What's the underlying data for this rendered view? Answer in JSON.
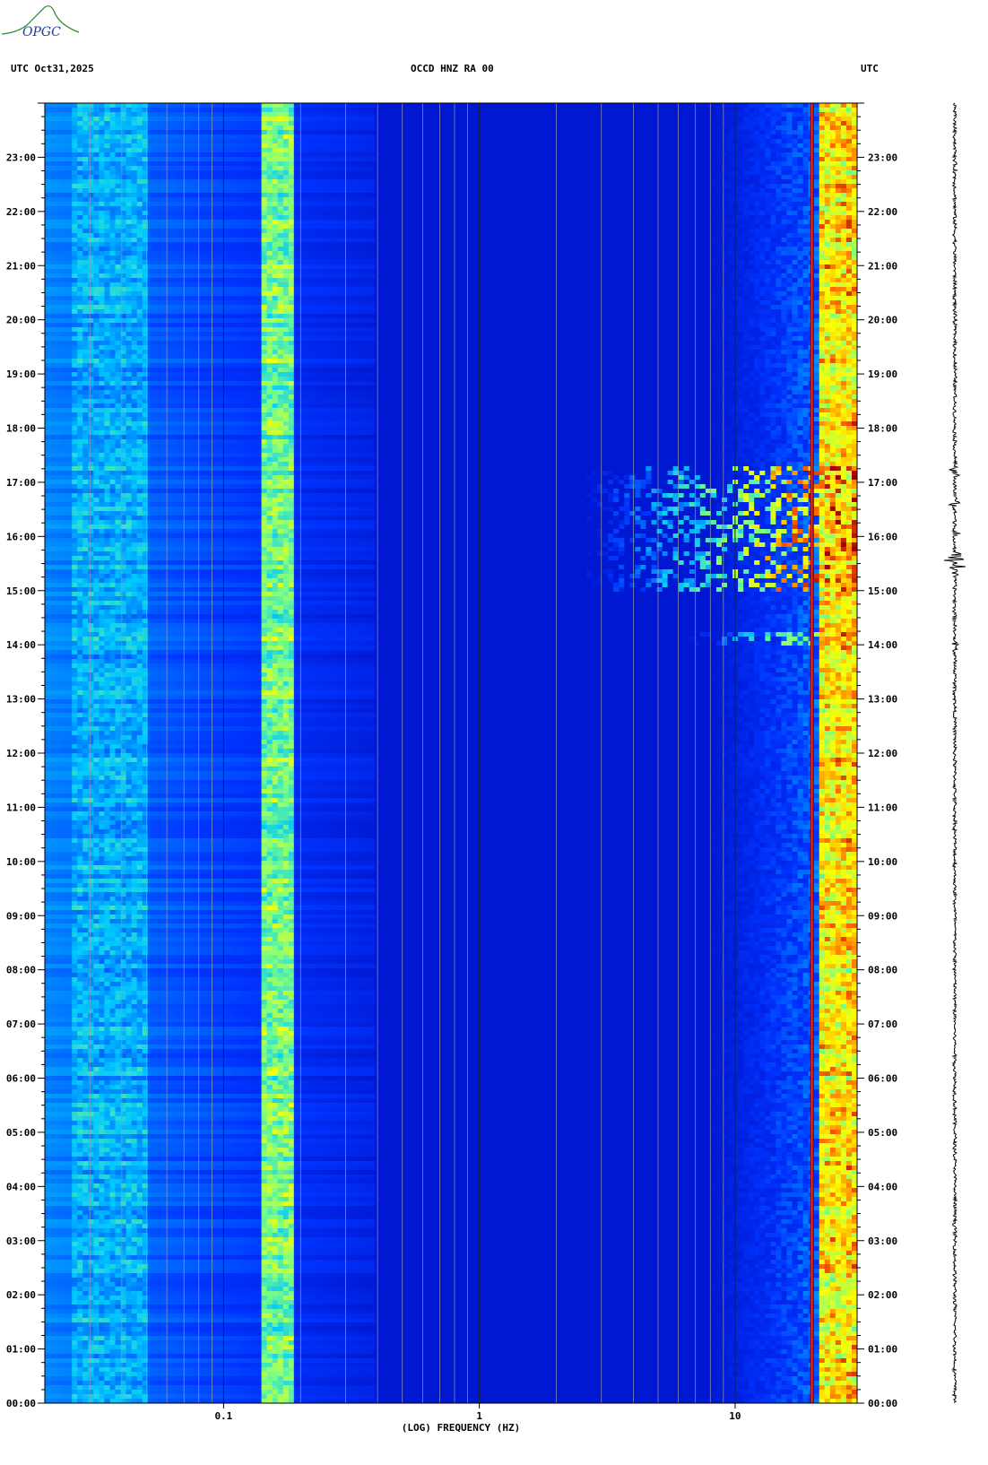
{
  "header": {
    "left": "UTC  Oct31,2025",
    "center": "OCCD HNZ RA 00",
    "right": "UTC"
  },
  "logo": {
    "text": "OPGC"
  },
  "chart_data": {
    "type": "heatmap",
    "title": "OCCD HNZ RA 00",
    "date": "Oct31,2025",
    "xlabel": "(LOG) FREQUENCY (HZ)",
    "xscale": "log",
    "xlim": [
      0.02,
      30
    ],
    "x_ticks": [
      0.1,
      1,
      10
    ],
    "x_tick_labels": [
      "0.1",
      "1",
      "10"
    ],
    "ylabel_left": "UTC",
    "ylabel_right": "UTC",
    "ylim_hours": [
      0,
      24
    ],
    "y_ticks": [
      "00:00",
      "01:00",
      "02:00",
      "03:00",
      "04:00",
      "05:00",
      "06:00",
      "07:00",
      "08:00",
      "09:00",
      "10:00",
      "11:00",
      "12:00",
      "13:00",
      "14:00",
      "15:00",
      "16:00",
      "17:00",
      "18:00",
      "19:00",
      "20:00",
      "21:00",
      "22:00",
      "23:00"
    ],
    "colormap": [
      "#0000a8",
      "#0033ff",
      "#00c8ff",
      "#7fff7f",
      "#ffff00",
      "#ff6600",
      "#a00000"
    ],
    "features": [
      {
        "kind": "band",
        "f_min": 0.14,
        "f_max": 0.19,
        "level": 0.55
      },
      {
        "kind": "band",
        "f_min": 0.025,
        "f_max": 0.05,
        "level": 0.35
      },
      {
        "kind": "tone",
        "f": 20,
        "level": 1.0
      },
      {
        "kind": "band",
        "f_min": 21,
        "f_max": 30,
        "level": 0.6
      },
      {
        "kind": "event",
        "t_start": 15.0,
        "t_end": 17.3,
        "f_min": 2,
        "f_max": 30,
        "level": 0.9
      },
      {
        "kind": "event",
        "t_start": 14.0,
        "t_end": 14.2,
        "f_min": 5,
        "f_max": 30,
        "level": 0.7
      }
    ]
  },
  "seismogram": {
    "events_hours": [
      15.4,
      15.6,
      16.1,
      16.6,
      17.2,
      14.0
    ]
  }
}
